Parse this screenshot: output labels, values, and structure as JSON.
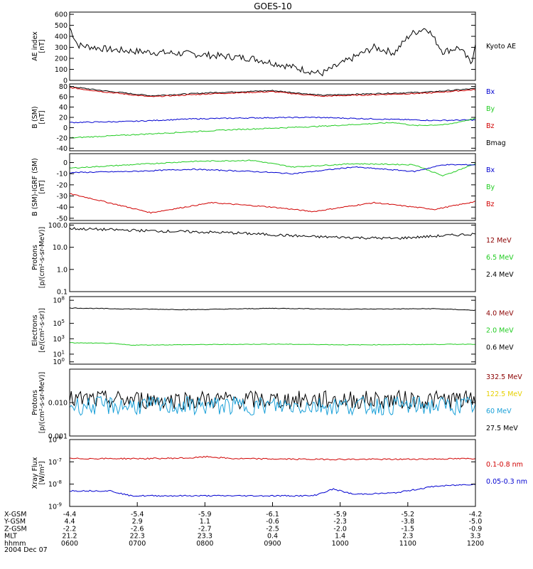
{
  "title": "GOES-10",
  "date_label": "2004 Dec 07",
  "colors": {
    "black": "#000000",
    "red": "#d00000",
    "dark_red": "#8b0000",
    "green": "#22cc22",
    "blue": "#0000d0",
    "yellow": "#e6d000",
    "cyan": "#1aa0d8"
  },
  "chart_data": [
    {
      "id": "ae",
      "type": "line",
      "ylabel": [
        "AE index",
        "[nT]"
      ],
      "yscale": "linear",
      "ylim": [
        0,
        620
      ],
      "yticks": [
        "600",
        "500",
        "400",
        "300",
        "200",
        "100",
        "0"
      ],
      "ytick_values": [
        600,
        500,
        400,
        300,
        200,
        100,
        0
      ],
      "legend": [
        {
          "name": "Kyoto AE",
          "color": "black"
        }
      ],
      "series": [
        {
          "name": "Kyoto AE",
          "color": "black",
          "x": [
            0,
            0.02,
            0.1,
            0.18,
            0.3,
            0.45,
            0.55,
            0.62,
            0.75,
            0.8,
            0.84,
            0.88,
            0.92,
            0.96,
            0.99,
            1
          ],
          "y": [
            480,
            320,
            280,
            260,
            240,
            200,
            120,
            60,
            300,
            250,
            420,
            480,
            260,
            300,
            150,
            350
          ]
        }
      ]
    },
    {
      "id": "bfield",
      "type": "line",
      "ylabel": [
        "B (SM)",
        "[nT]"
      ],
      "yscale": "linear",
      "ylim": [
        -45,
        85
      ],
      "yticks": [
        "80",
        "60",
        "40",
        "20",
        "0",
        "-20",
        "-40"
      ],
      "ytick_values": [
        80,
        60,
        40,
        20,
        0,
        -20,
        -40
      ],
      "legend": [
        {
          "name": "Bx",
          "color": "blue"
        },
        {
          "name": "By",
          "color": "green"
        },
        {
          "name": "Bz",
          "color": "red"
        },
        {
          "name": "Bmag",
          "color": "black"
        }
      ],
      "series": [
        {
          "name": "Bmag",
          "color": "black",
          "x": [
            0,
            0.08,
            0.2,
            0.35,
            0.5,
            0.62,
            0.75,
            0.88,
            1
          ],
          "y": [
            80,
            72,
            62,
            68,
            72,
            63,
            66,
            69,
            76
          ]
        },
        {
          "name": "Bz",
          "color": "red",
          "x": [
            0,
            0.08,
            0.2,
            0.35,
            0.5,
            0.62,
            0.75,
            0.88,
            1
          ],
          "y": [
            78,
            70,
            60,
            66,
            70,
            61,
            64,
            67,
            74
          ]
        },
        {
          "name": "Bx",
          "color": "blue",
          "x": [
            0,
            0.15,
            0.3,
            0.45,
            0.6,
            0.75,
            0.9,
            1
          ],
          "y": [
            10,
            12,
            17,
            19,
            20,
            17,
            14,
            15
          ]
        },
        {
          "name": "By",
          "color": "green",
          "x": [
            0,
            0.2,
            0.4,
            0.6,
            0.8,
            0.85,
            0.93,
            1
          ],
          "y": [
            -20,
            -12,
            -4,
            2,
            10,
            4,
            6,
            18
          ]
        }
      ]
    },
    {
      "id": "bdiff",
      "type": "line",
      "ylabel": [
        "B (SM)-IGRF (SM)",
        "[nT]"
      ],
      "yscale": "linear",
      "ylim": [
        -52,
        8
      ],
      "yticks": [
        "0",
        "-10",
        "-20",
        "-30",
        "-40",
        "-50"
      ],
      "ytick_values": [
        0,
        -10,
        -20,
        -30,
        -40,
        -50
      ],
      "legend": [
        {
          "name": "Bx",
          "color": "blue"
        },
        {
          "name": "By",
          "color": "green"
        },
        {
          "name": "Bz",
          "color": "red"
        }
      ],
      "series": [
        {
          "name": "Bz",
          "color": "red",
          "x": [
            0,
            0.05,
            0.2,
            0.35,
            0.5,
            0.6,
            0.75,
            0.9,
            1
          ],
          "y": [
            -28,
            -32,
            -45,
            -36,
            -40,
            -44,
            -36,
            -42,
            -35
          ]
        },
        {
          "name": "By",
          "color": "green",
          "x": [
            0,
            0.15,
            0.3,
            0.45,
            0.55,
            0.7,
            0.85,
            0.92,
            1
          ],
          "y": [
            -5,
            -2,
            1,
            2,
            -4,
            -1,
            -2,
            -12,
            -1
          ]
        },
        {
          "name": "Bx",
          "color": "blue",
          "x": [
            0,
            0.15,
            0.3,
            0.45,
            0.55,
            0.7,
            0.85,
            0.92,
            1
          ],
          "y": [
            -9,
            -8,
            -6,
            -8,
            -10,
            -4,
            -8,
            -2,
            -2
          ]
        }
      ]
    },
    {
      "id": "protons_low",
      "type": "line",
      "ylabel": [
        "Protons",
        "[p/(cm²-s-sr-MeV)]"
      ],
      "yscale": "log",
      "ylim": [
        0.1,
        120
      ],
      "yticks": [
        "100.0",
        "10.0",
        "1.0",
        "0.1"
      ],
      "ytick_values": [
        100,
        10,
        1,
        0.1
      ],
      "legend": [
        {
          "name": "12 MeV",
          "color": "dark_red"
        },
        {
          "name": "6.5 MeV",
          "color": "green"
        },
        {
          "name": "2.4 MeV",
          "color": "black"
        }
      ],
      "series": [
        {
          "name": "2.4 MeV",
          "color": "black",
          "x": [
            0,
            0.2,
            0.4,
            0.6,
            0.8,
            1
          ],
          "y": [
            70,
            55,
            45,
            30,
            25,
            40
          ]
        }
      ]
    },
    {
      "id": "electrons",
      "type": "line",
      "ylabel": [
        "Electrons",
        "[e/(cm²-s-sr)]"
      ],
      "yscale": "log",
      "ylim": [
        0.5,
        300000000.0
      ],
      "yticks": [
        "10^8",
        "10^5",
        "10^3",
        "10^1",
        "10^0"
      ],
      "ytick_values": [
        100000000.0,
        100000.0,
        1000.0,
        10,
        1
      ],
      "legend": [
        {
          "name": "4.0 MeV",
          "color": "dark_red"
        },
        {
          "name": "2.0 MeV",
          "color": "green"
        },
        {
          "name": "0.6 MeV",
          "color": "black"
        }
      ],
      "series": [
        {
          "name": "0.6 MeV",
          "color": "black",
          "x": [
            0,
            0.1,
            0.3,
            0.5,
            0.7,
            0.9,
            1
          ],
          "y": [
            10000000.0,
            8000000.0,
            6000000.0,
            9000000.0,
            7000000.0,
            8000000.0,
            5000000.0
          ]
        },
        {
          "name": "2.0 MeV",
          "color": "green",
          "x": [
            0,
            0.1,
            0.15,
            0.3,
            0.5,
            0.7,
            1
          ],
          "y": [
            300,
            250,
            150,
            170,
            200,
            160,
            200
          ]
        }
      ]
    },
    {
      "id": "protons_high",
      "type": "line",
      "ylabel": [
        "Protons",
        "[p/(cm²-s-sr-MeV)]"
      ],
      "yscale": "log",
      "ylim": [
        0.001,
        0.1
      ],
      "yticks": [
        "0.010",
        "0.001"
      ],
      "ytick_values": [
        0.01,
        0.001
      ],
      "legend": [
        {
          "name": "332.5 MeV",
          "color": "dark_red"
        },
        {
          "name": "122.5 MeV",
          "color": "yellow"
        },
        {
          "name": "60 MeV",
          "color": "cyan"
        },
        {
          "name": "27.5 MeV",
          "color": "black"
        }
      ],
      "series": [
        {
          "name": "27.5 MeV",
          "color": "black",
          "x": [
            0,
            1
          ],
          "y": [
            0.012,
            0.012
          ]
        },
        {
          "name": "60 MeV",
          "color": "cyan",
          "x": [
            0,
            1
          ],
          "y": [
            0.008,
            0.008
          ]
        }
      ]
    },
    {
      "id": "xray",
      "type": "line",
      "ylabel": [
        "Xray Flux",
        "[W/m²]"
      ],
      "yscale": "log",
      "ylim": [
        1e-09,
        1e-06
      ],
      "yticks": [
        "10^-6",
        "10^-7",
        "10^-8",
        "10^-9"
      ],
      "ytick_values": [
        1e-06,
        1e-07,
        1e-08,
        1e-09
      ],
      "legend": [
        {
          "name": "0.1-0.8 nm",
          "color": "red"
        },
        {
          "name": "0.05-0.3 nm",
          "color": "blue"
        }
      ],
      "series": [
        {
          "name": "0.1-0.8 nm",
          "color": "red",
          "x": [
            0,
            0.2,
            0.3,
            0.34,
            0.4,
            0.6,
            0.8,
            1
          ],
          "y": [
            1.4e-07,
            1.4e-07,
            1.5e-07,
            1.7e-07,
            1.4e-07,
            1.3e-07,
            1.3e-07,
            1.4e-07
          ]
        },
        {
          "name": "0.05-0.3 nm",
          "color": "blue",
          "x": [
            0,
            0.1,
            0.15,
            0.4,
            0.6,
            0.65,
            0.7,
            0.8,
            0.9,
            1
          ],
          "y": [
            5e-09,
            5e-09,
            3e-09,
            3e-09,
            3e-09,
            6e-09,
            3.5e-09,
            4e-09,
            8e-09,
            1e-08
          ]
        }
      ]
    }
  ],
  "axis_table": {
    "row_labels": [
      "X-GSM",
      "Y-GSM",
      "Z-GSM",
      "MLT",
      "hhmm"
    ],
    "columns": [
      [
        "-4.4",
        "4.4",
        "-2.2",
        "21.2",
        "0600"
      ],
      [
        "-5.4",
        "2.9",
        "-2.6",
        "22.3",
        "0700"
      ],
      [
        "-5.9",
        "1.1",
        "-2.7",
        "23.3",
        "0800"
      ],
      [
        "-6.1",
        "-0.6",
        "-2.5",
        "0.4",
        "0900"
      ],
      [
        "-5.9",
        "-2.3",
        "-2.0",
        "1.4",
        "1000"
      ],
      [
        "-5.2",
        "-3.8",
        "-1.5",
        "2.3",
        "1100"
      ],
      [
        "-4.2",
        "-5.0",
        "-0.9",
        "3.3",
        "1200"
      ]
    ]
  }
}
